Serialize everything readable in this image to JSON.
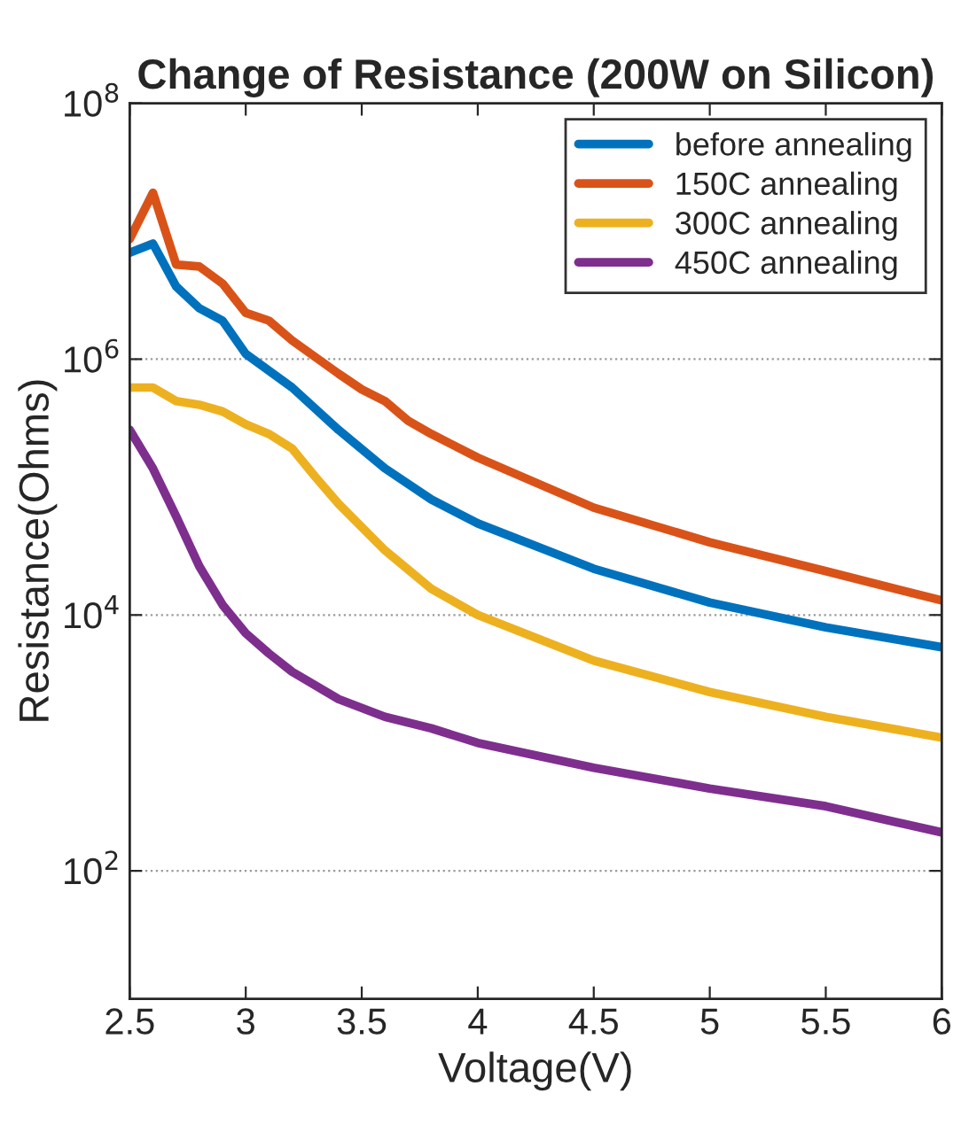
{
  "chart_data": {
    "type": "line",
    "title": "Change of Resistance (200W on Silicon)",
    "xlabel": "Voltage(V)",
    "ylabel": "Resistance(Ohms)",
    "log": "y",
    "grid": "y",
    "legend": "top right",
    "line_style": "solid",
    "marker": "none",
    "xlim": [
      2.5,
      6
    ],
    "xticks": [
      2.5,
      3,
      3.5,
      4,
      4.5,
      5,
      5.5,
      6
    ],
    "ylim": [
      10,
      100000000
    ],
    "yticks": [
      {
        "value": 100,
        "label": "10$^{2}$"
      },
      {
        "value": 10000,
        "label": "10$^{4}$"
      },
      {
        "value": 1000000,
        "label": "10$^{6}$"
      },
      {
        "value": 100000000,
        "label": "10$^{8}$"
      }
    ],
    "series": [
      {
        "name": "before annealing",
        "color": "#0072bd",
        "x": [
          2.5,
          2.6,
          2.7,
          2.8,
          2.9,
          3.0,
          3.2,
          3.4,
          3.6,
          3.8,
          4.0,
          4.5,
          5.0,
          5.5,
          6.0
        ],
        "values": [
          6800000,
          8000000,
          3700000,
          2500000,
          2000000,
          1100000,
          600000,
          280000,
          140000,
          80000,
          52000,
          23000,
          12500,
          8000,
          5600
        ]
      },
      {
        "name": "150C annealing",
        "color": "#d95319",
        "x": [
          2.5,
          2.6,
          2.7,
          2.8,
          2.9,
          3.0,
          3.1,
          3.2,
          3.4,
          3.5,
          3.6,
          3.7,
          3.8,
          4.0,
          4.5,
          5.0,
          5.5,
          6.0
        ],
        "values": [
          8700000,
          20000000,
          5500000,
          5300000,
          3900000,
          2300000,
          2000000,
          1400000,
          770000,
          580000,
          470000,
          330000,
          260000,
          170000,
          69000,
          37000,
          22000,
          13000
        ]
      },
      {
        "name": "300C annealing",
        "color": "#edb120",
        "x": [
          2.5,
          2.6,
          2.7,
          2.8,
          2.9,
          3.0,
          3.1,
          3.2,
          3.3,
          3.4,
          3.6,
          3.8,
          4.0,
          4.5,
          5.0,
          5.5,
          6.0
        ],
        "values": [
          600000,
          600000,
          470000,
          440000,
          390000,
          310000,
          260000,
          200000,
          120000,
          74000,
          32000,
          16000,
          10000,
          4400,
          2500,
          1600,
          1100
        ]
      },
      {
        "name": "450C annealing",
        "color": "#7e2f8e",
        "x": [
          2.5,
          2.6,
          2.7,
          2.8,
          2.9,
          3.0,
          3.1,
          3.2,
          3.4,
          3.6,
          3.8,
          4.0,
          4.5,
          5.0,
          5.5,
          6.0
        ],
        "values": [
          280000,
          140000,
          59000,
          24000,
          12000,
          7200,
          5000,
          3600,
          2200,
          1600,
          1300,
          1000,
          640,
          440,
          320,
          200
        ]
      }
    ]
  }
}
